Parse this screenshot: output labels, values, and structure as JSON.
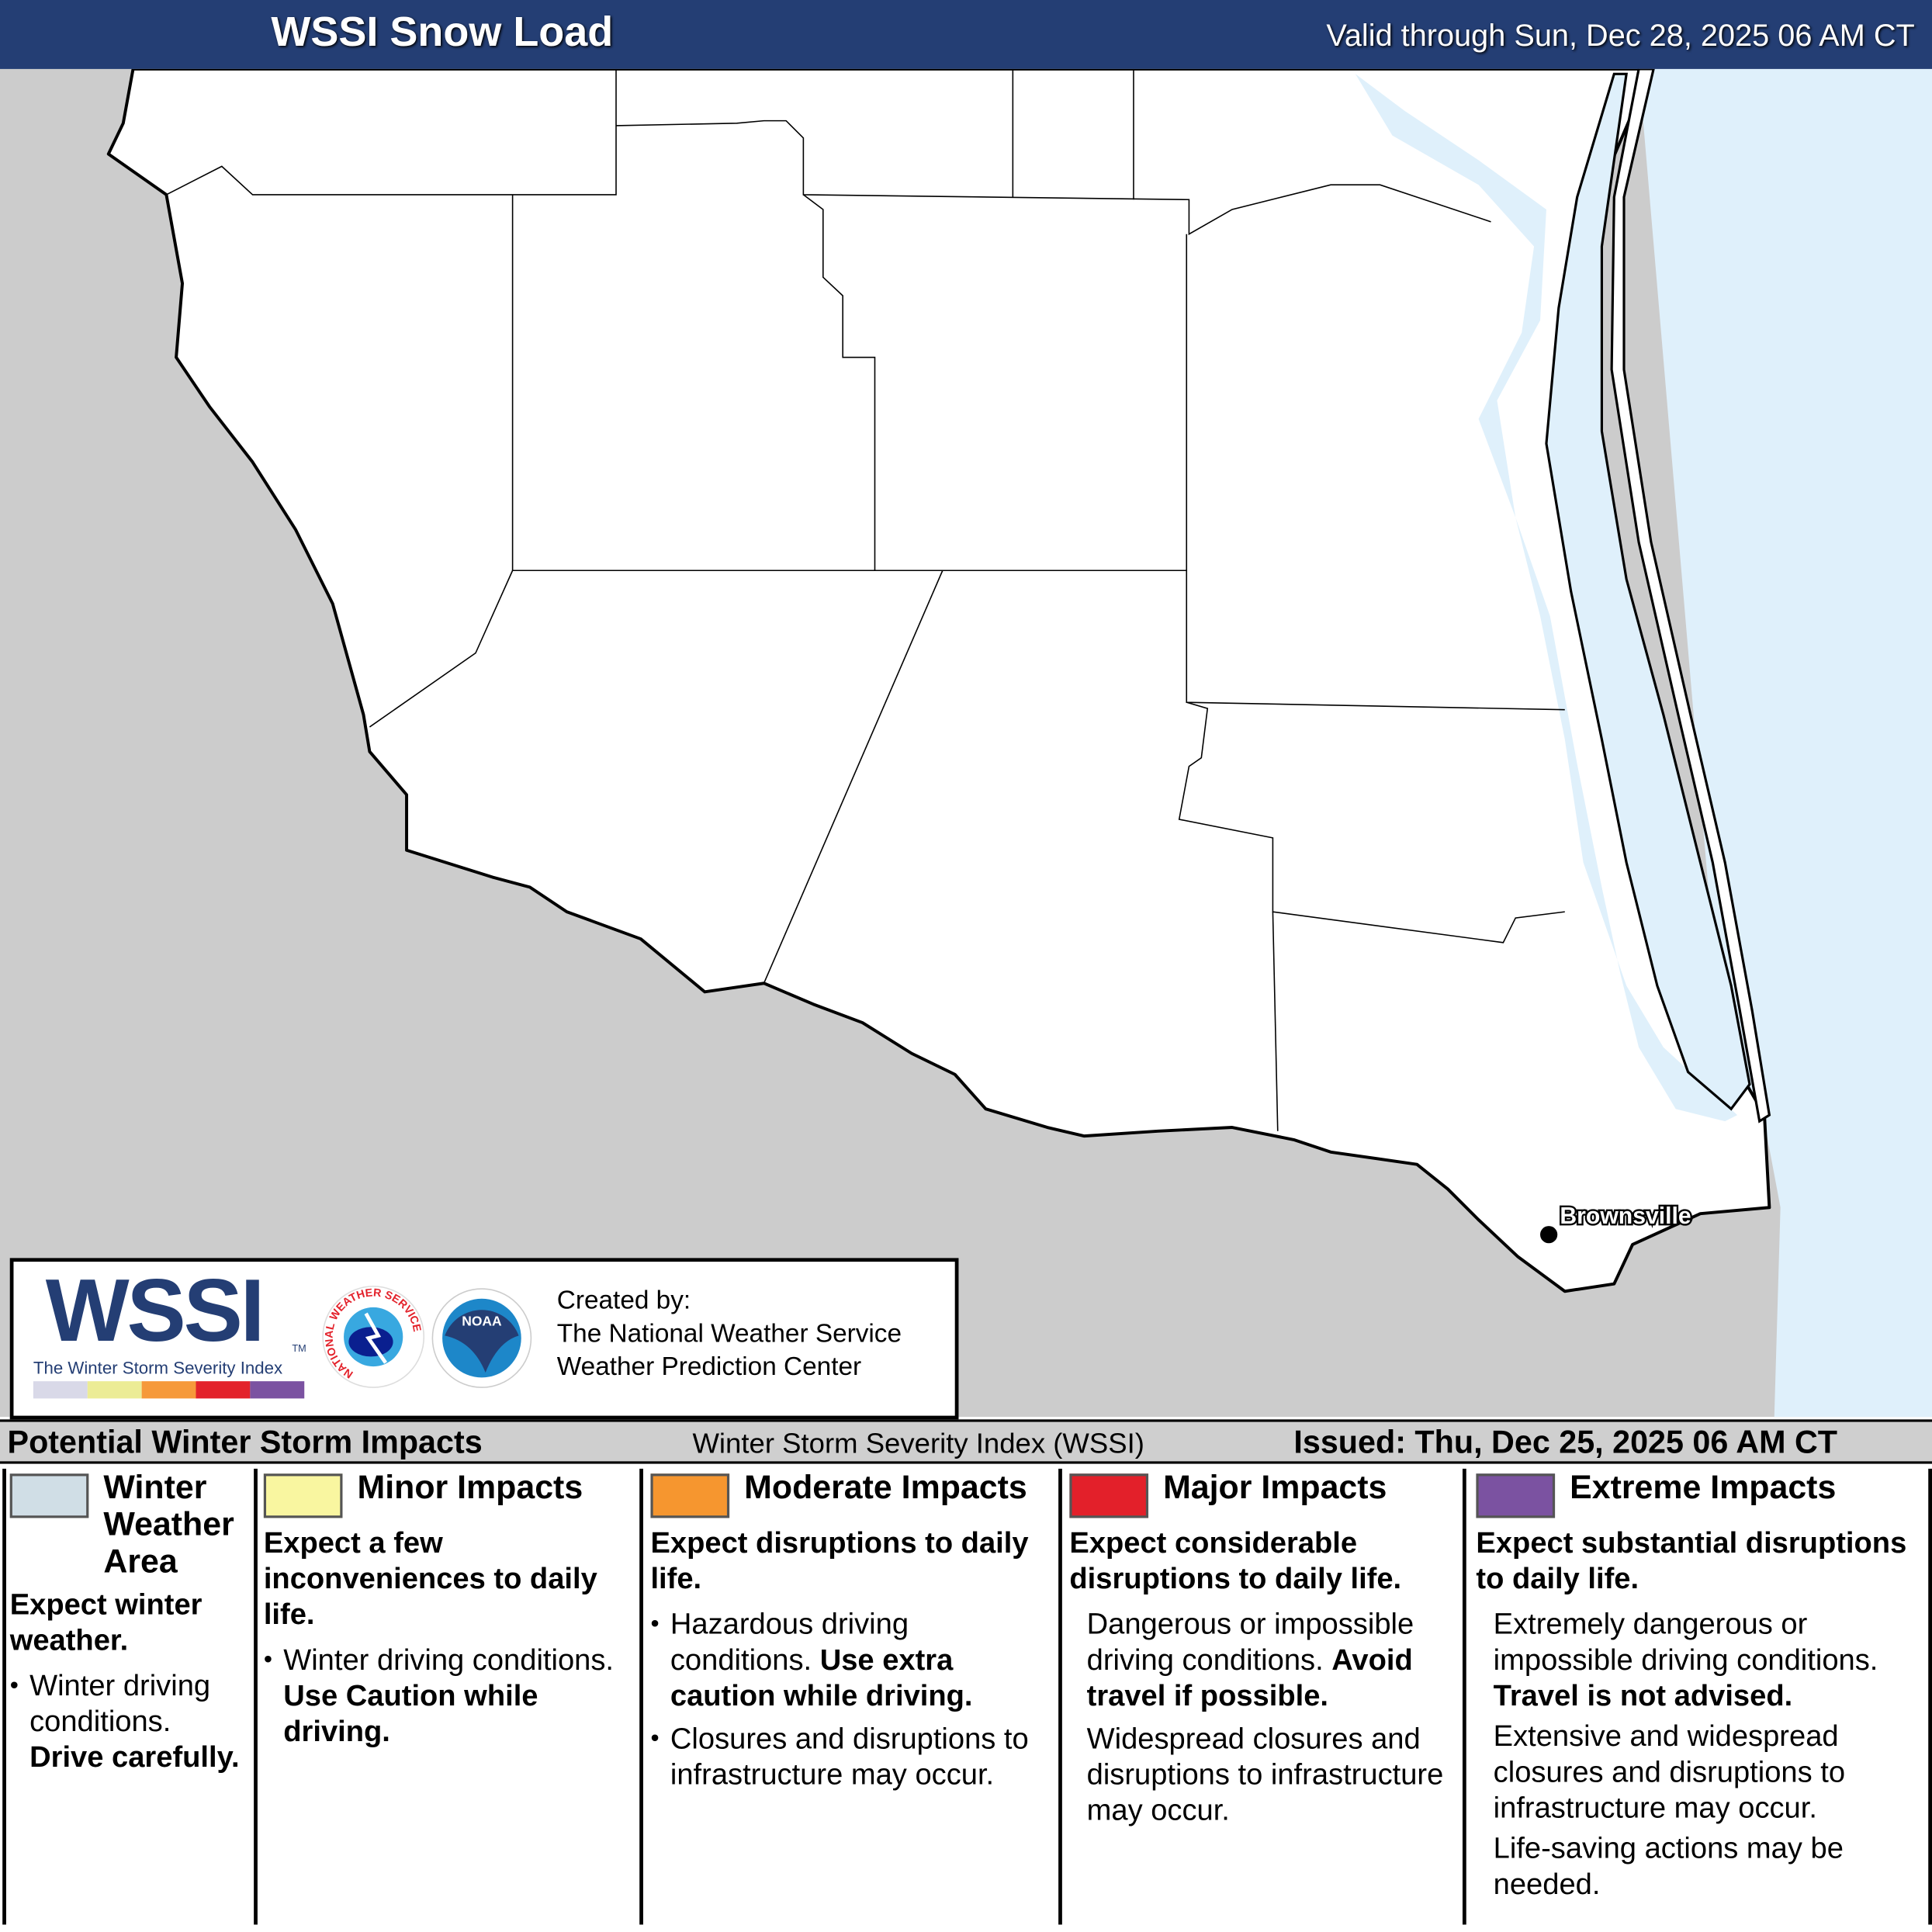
{
  "header": {
    "title": "WSSI Snow Load",
    "valid": "Valid through Sun, Dec 28, 2025 06 AM CT"
  },
  "map": {
    "city": "Brownsville",
    "colors": {
      "land": "#ffffff",
      "mexico": "#cccccc",
      "water": "#dff0fb"
    }
  },
  "logo": {
    "wssi": "WSSI",
    "tm": "TM",
    "subtitle": "The Winter Storm Severity Index",
    "nws_text": "NATIONAL WEATHER SERVICE",
    "noaa_text": "NOAA",
    "created_by": "Created by:",
    "org1": "The National Weather Service",
    "org2": "Weather Prediction Center",
    "scale_colors": [
      "#d9d9e8",
      "#ecec96",
      "#f6993a",
      "#e3222b",
      "#7b52a1"
    ]
  },
  "legend": {
    "left": "Potential Winter Storm Impacts",
    "middle": "Winter Storm Severity Index (WSSI)",
    "issued": "Issued: Thu, Dec 25, 2025 06 AM CT",
    "categories": [
      {
        "name": "Winter Weather Area",
        "color": "#d0dee6",
        "heading": "Expect winter weather.",
        "b1": "Winter driving conditions.",
        "b1_bold": "Drive carefully."
      },
      {
        "name": "Minor Impacts",
        "color": "#f9f6a0",
        "heading": "Expect a few inconveniences to daily life.",
        "b1": "Winter driving conditions.",
        "b1_bold": "Use Caution while driving."
      },
      {
        "name": "Moderate Impacts",
        "color": "#f6962f",
        "heading": "Expect disruptions to daily life.",
        "b1": "Hazardous driving conditions.",
        "b1_bold": "Use extra caution while driving.",
        "b2": "Closures and disruptions to infrastructure may occur."
      },
      {
        "name": "Major Impacts",
        "color": "#e3202a",
        "heading": "Expect considerable disruptions to daily life.",
        "b1": "Dangerous or impossible driving conditions.",
        "b1_bold": "Avoid travel if possible.",
        "b2": "Widespread closures and disruptions to infrastructure may occur."
      },
      {
        "name": "Extreme Impacts",
        "color": "#7b52a1",
        "heading": "Expect substantial disruptions to daily life.",
        "b1": "Extremely dangerous or impossible driving conditions.",
        "b1_bold": "Travel is not advised.",
        "b2": "Extensive and widespread closures and disruptions to infrastructure may occur.",
        "b3": "Life-saving actions may be needed."
      }
    ]
  }
}
